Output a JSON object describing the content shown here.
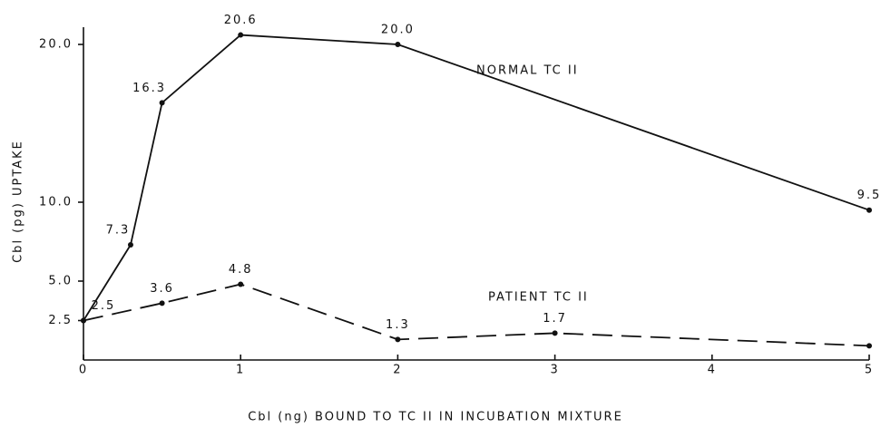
{
  "chart_data": {
    "type": "line",
    "x_label": "Cbl (ng) BOUND TO TC II IN INCUBATION MIXTURE",
    "y_label": "Cbl (pg) UPTAKE",
    "xlim": [
      0,
      5
    ],
    "xticks": [
      0,
      1,
      2,
      3,
      4,
      5
    ],
    "ylim": [
      0,
      21
    ],
    "yticks": [
      2.5,
      {
        "value": 5,
        "label": "5.0"
      },
      {
        "value": 10,
        "label": "10.0"
      },
      {
        "value": 20,
        "label": "20.0"
      }
    ],
    "grid": false,
    "series": [
      {
        "name": "NORMAL TC II",
        "color": "#111111",
        "linestyle": "solid",
        "x": [
          0,
          0.3,
          0.5,
          1,
          2,
          5
        ],
        "values": [
          2.5,
          7.3,
          16.3,
          20.6,
          20.0,
          9.5
        ],
        "value_labels": [
          null,
          "7.3",
          "16.3",
          "20.6",
          "20.0",
          "9.5"
        ]
      },
      {
        "name": "PATIENT TC II",
        "color": "#111111",
        "linestyle": "dashed",
        "x": [
          0,
          0.5,
          1,
          2,
          3,
          5
        ],
        "values": [
          2.5,
          3.6,
          4.8,
          1.3,
          1.7,
          0.9
        ],
        "value_labels": [
          "2.5",
          "3.6",
          "4.8",
          "1.3",
          "1.7",
          null
        ]
      }
    ]
  }
}
